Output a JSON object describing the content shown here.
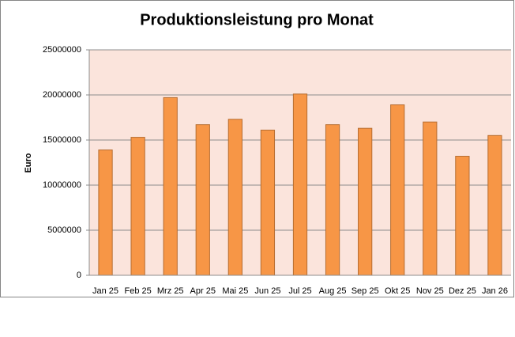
{
  "chart_data": {
    "type": "bar",
    "title": "Produktionsleistung pro Monat",
    "y_label": "Euro",
    "categories": [
      "Jan 25",
      "Feb 25",
      "Mrz 25",
      "Apr 25",
      "Mai 25",
      "Jun 25",
      "Jul 25",
      "Aug 25",
      "Sep 25",
      "Okt 25",
      "Nov 25",
      "Dez 25",
      "Jan 26"
    ],
    "values": [
      13900000,
      15300000,
      19700000,
      16700000,
      17300000,
      16100000,
      20100000,
      16700000,
      16300000,
      18900000,
      17000000,
      13200000,
      15500000
    ],
    "color": "#f79646",
    "ylim": [
      0,
      25000000
    ],
    "yticks": [
      0,
      5000000,
      10000000,
      15000000,
      20000000,
      25000000
    ],
    "grid": true
  }
}
